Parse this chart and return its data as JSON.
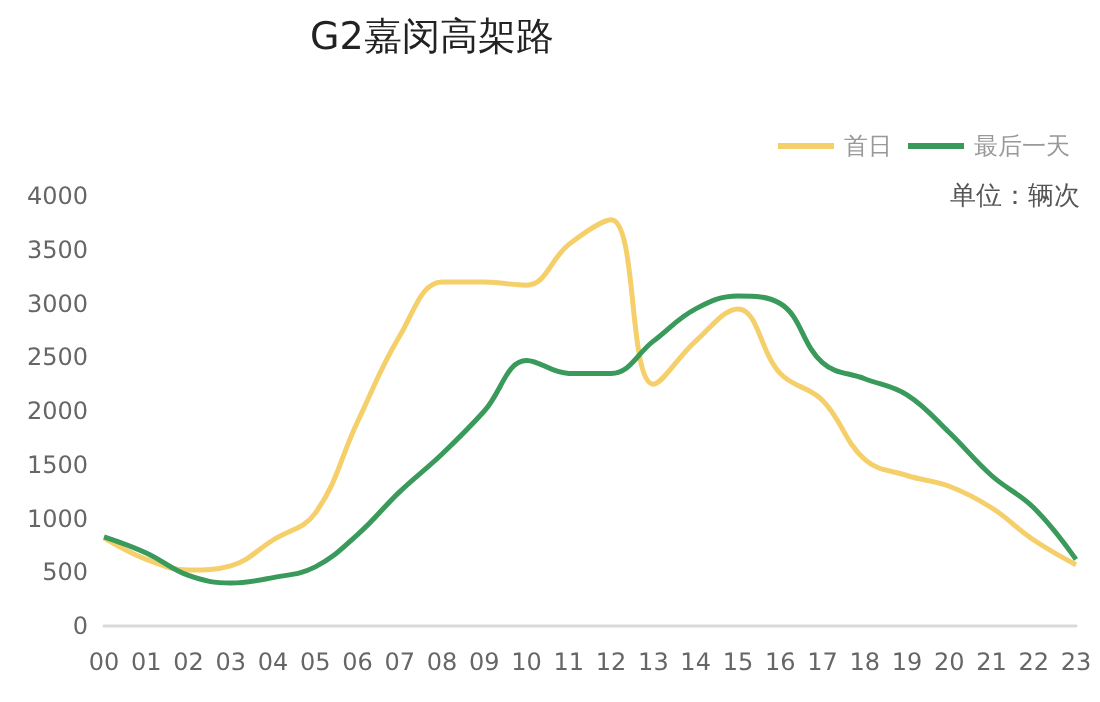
{
  "chart_data": {
    "type": "line",
    "title": "G2嘉闵高架路",
    "annotations": [
      "单位：辆次"
    ],
    "categories": [
      "00",
      "01",
      "02",
      "03",
      "04",
      "05",
      "06",
      "07",
      "08",
      "09",
      "10",
      "11",
      "12",
      "13",
      "14",
      "15",
      "16",
      "17",
      "18",
      "19",
      "20",
      "21",
      "22",
      "23"
    ],
    "series": [
      {
        "name": "首日",
        "color": "#f5cf6a",
        "values": [
          820,
          620,
          520,
          560,
          800,
          1050,
          1900,
          2700,
          3200,
          3200,
          3170,
          3550,
          3780,
          2250,
          2650,
          2950,
          2350,
          2100,
          1550,
          1400,
          1300,
          1100,
          800,
          570
        ]
      },
      {
        "name": "最后一天",
        "color": "#3a9a5b",
        "values": [
          830,
          680,
          470,
          400,
          450,
          550,
          850,
          1250,
          1600,
          2000,
          2470,
          2350,
          2350,
          2650,
          2950,
          3070,
          3000,
          2450,
          2300,
          2150,
          1800,
          1400,
          1100,
          620
        ]
      }
    ],
    "ylim": [
      0,
      4000
    ],
    "yticks": [
      0,
      500,
      1000,
      1500,
      2000,
      2500,
      3000,
      3500,
      4000
    ],
    "grid": false,
    "legend": "top right",
    "marker": "none",
    "line_style": "solid"
  }
}
